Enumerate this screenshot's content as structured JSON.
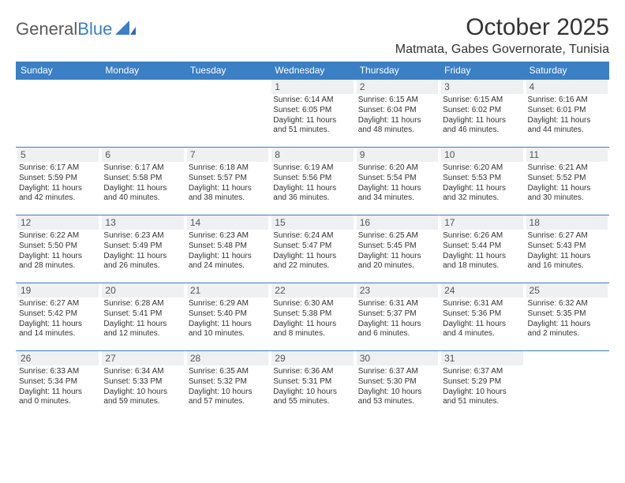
{
  "brand": {
    "part1": "General",
    "part2": "Blue"
  },
  "title": "October 2025",
  "location": "Matmata, Gabes Governorate, Tunisia",
  "colors": {
    "header_bg": "#3b7fc4",
    "header_text": "#ffffff",
    "daynum_bg": "#eef0f2",
    "border": "#3b7fc4",
    "body_text": "#333333",
    "logo_gray": "#5a5a5a",
    "logo_blue": "#3b7fc4"
  },
  "typography": {
    "month_title_fontsize": 30,
    "location_fontsize": 16,
    "weekday_fontsize": 12,
    "daynum_fontsize": 12,
    "body_fontsize": 10
  },
  "weekdays": [
    "Sunday",
    "Monday",
    "Tuesday",
    "Wednesday",
    "Thursday",
    "Friday",
    "Saturday"
  ],
  "weeks": [
    [
      {
        "day": "",
        "sunrise": "",
        "sunset": "",
        "daylight1": "",
        "daylight2": ""
      },
      {
        "day": "",
        "sunrise": "",
        "sunset": "",
        "daylight1": "",
        "daylight2": ""
      },
      {
        "day": "",
        "sunrise": "",
        "sunset": "",
        "daylight1": "",
        "daylight2": ""
      },
      {
        "day": "1",
        "sunrise": "Sunrise: 6:14 AM",
        "sunset": "Sunset: 6:05 PM",
        "daylight1": "Daylight: 11 hours",
        "daylight2": "and 51 minutes."
      },
      {
        "day": "2",
        "sunrise": "Sunrise: 6:15 AM",
        "sunset": "Sunset: 6:04 PM",
        "daylight1": "Daylight: 11 hours",
        "daylight2": "and 48 minutes."
      },
      {
        "day": "3",
        "sunrise": "Sunrise: 6:15 AM",
        "sunset": "Sunset: 6:02 PM",
        "daylight1": "Daylight: 11 hours",
        "daylight2": "and 46 minutes."
      },
      {
        "day": "4",
        "sunrise": "Sunrise: 6:16 AM",
        "sunset": "Sunset: 6:01 PM",
        "daylight1": "Daylight: 11 hours",
        "daylight2": "and 44 minutes."
      }
    ],
    [
      {
        "day": "5",
        "sunrise": "Sunrise: 6:17 AM",
        "sunset": "Sunset: 5:59 PM",
        "daylight1": "Daylight: 11 hours",
        "daylight2": "and 42 minutes."
      },
      {
        "day": "6",
        "sunrise": "Sunrise: 6:17 AM",
        "sunset": "Sunset: 5:58 PM",
        "daylight1": "Daylight: 11 hours",
        "daylight2": "and 40 minutes."
      },
      {
        "day": "7",
        "sunrise": "Sunrise: 6:18 AM",
        "sunset": "Sunset: 5:57 PM",
        "daylight1": "Daylight: 11 hours",
        "daylight2": "and 38 minutes."
      },
      {
        "day": "8",
        "sunrise": "Sunrise: 6:19 AM",
        "sunset": "Sunset: 5:56 PM",
        "daylight1": "Daylight: 11 hours",
        "daylight2": "and 36 minutes."
      },
      {
        "day": "9",
        "sunrise": "Sunrise: 6:20 AM",
        "sunset": "Sunset: 5:54 PM",
        "daylight1": "Daylight: 11 hours",
        "daylight2": "and 34 minutes."
      },
      {
        "day": "10",
        "sunrise": "Sunrise: 6:20 AM",
        "sunset": "Sunset: 5:53 PM",
        "daylight1": "Daylight: 11 hours",
        "daylight2": "and 32 minutes."
      },
      {
        "day": "11",
        "sunrise": "Sunrise: 6:21 AM",
        "sunset": "Sunset: 5:52 PM",
        "daylight1": "Daylight: 11 hours",
        "daylight2": "and 30 minutes."
      }
    ],
    [
      {
        "day": "12",
        "sunrise": "Sunrise: 6:22 AM",
        "sunset": "Sunset: 5:50 PM",
        "daylight1": "Daylight: 11 hours",
        "daylight2": "and 28 minutes."
      },
      {
        "day": "13",
        "sunrise": "Sunrise: 6:23 AM",
        "sunset": "Sunset: 5:49 PM",
        "daylight1": "Daylight: 11 hours",
        "daylight2": "and 26 minutes."
      },
      {
        "day": "14",
        "sunrise": "Sunrise: 6:23 AM",
        "sunset": "Sunset: 5:48 PM",
        "daylight1": "Daylight: 11 hours",
        "daylight2": "and 24 minutes."
      },
      {
        "day": "15",
        "sunrise": "Sunrise: 6:24 AM",
        "sunset": "Sunset: 5:47 PM",
        "daylight1": "Daylight: 11 hours",
        "daylight2": "and 22 minutes."
      },
      {
        "day": "16",
        "sunrise": "Sunrise: 6:25 AM",
        "sunset": "Sunset: 5:45 PM",
        "daylight1": "Daylight: 11 hours",
        "daylight2": "and 20 minutes."
      },
      {
        "day": "17",
        "sunrise": "Sunrise: 6:26 AM",
        "sunset": "Sunset: 5:44 PM",
        "daylight1": "Daylight: 11 hours",
        "daylight2": "and 18 minutes."
      },
      {
        "day": "18",
        "sunrise": "Sunrise: 6:27 AM",
        "sunset": "Sunset: 5:43 PM",
        "daylight1": "Daylight: 11 hours",
        "daylight2": "and 16 minutes."
      }
    ],
    [
      {
        "day": "19",
        "sunrise": "Sunrise: 6:27 AM",
        "sunset": "Sunset: 5:42 PM",
        "daylight1": "Daylight: 11 hours",
        "daylight2": "and 14 minutes."
      },
      {
        "day": "20",
        "sunrise": "Sunrise: 6:28 AM",
        "sunset": "Sunset: 5:41 PM",
        "daylight1": "Daylight: 11 hours",
        "daylight2": "and 12 minutes."
      },
      {
        "day": "21",
        "sunrise": "Sunrise: 6:29 AM",
        "sunset": "Sunset: 5:40 PM",
        "daylight1": "Daylight: 11 hours",
        "daylight2": "and 10 minutes."
      },
      {
        "day": "22",
        "sunrise": "Sunrise: 6:30 AM",
        "sunset": "Sunset: 5:38 PM",
        "daylight1": "Daylight: 11 hours",
        "daylight2": "and 8 minutes."
      },
      {
        "day": "23",
        "sunrise": "Sunrise: 6:31 AM",
        "sunset": "Sunset: 5:37 PM",
        "daylight1": "Daylight: 11 hours",
        "daylight2": "and 6 minutes."
      },
      {
        "day": "24",
        "sunrise": "Sunrise: 6:31 AM",
        "sunset": "Sunset: 5:36 PM",
        "daylight1": "Daylight: 11 hours",
        "daylight2": "and 4 minutes."
      },
      {
        "day": "25",
        "sunrise": "Sunrise: 6:32 AM",
        "sunset": "Sunset: 5:35 PM",
        "daylight1": "Daylight: 11 hours",
        "daylight2": "and 2 minutes."
      }
    ],
    [
      {
        "day": "26",
        "sunrise": "Sunrise: 6:33 AM",
        "sunset": "Sunset: 5:34 PM",
        "daylight1": "Daylight: 11 hours",
        "daylight2": "and 0 minutes."
      },
      {
        "day": "27",
        "sunrise": "Sunrise: 6:34 AM",
        "sunset": "Sunset: 5:33 PM",
        "daylight1": "Daylight: 10 hours",
        "daylight2": "and 59 minutes."
      },
      {
        "day": "28",
        "sunrise": "Sunrise: 6:35 AM",
        "sunset": "Sunset: 5:32 PM",
        "daylight1": "Daylight: 10 hours",
        "daylight2": "and 57 minutes."
      },
      {
        "day": "29",
        "sunrise": "Sunrise: 6:36 AM",
        "sunset": "Sunset: 5:31 PM",
        "daylight1": "Daylight: 10 hours",
        "daylight2": "and 55 minutes."
      },
      {
        "day": "30",
        "sunrise": "Sunrise: 6:37 AM",
        "sunset": "Sunset: 5:30 PM",
        "daylight1": "Daylight: 10 hours",
        "daylight2": "and 53 minutes."
      },
      {
        "day": "31",
        "sunrise": "Sunrise: 6:37 AM",
        "sunset": "Sunset: 5:29 PM",
        "daylight1": "Daylight: 10 hours",
        "daylight2": "and 51 minutes."
      },
      {
        "day": "",
        "sunrise": "",
        "sunset": "",
        "daylight1": "",
        "daylight2": ""
      }
    ]
  ]
}
